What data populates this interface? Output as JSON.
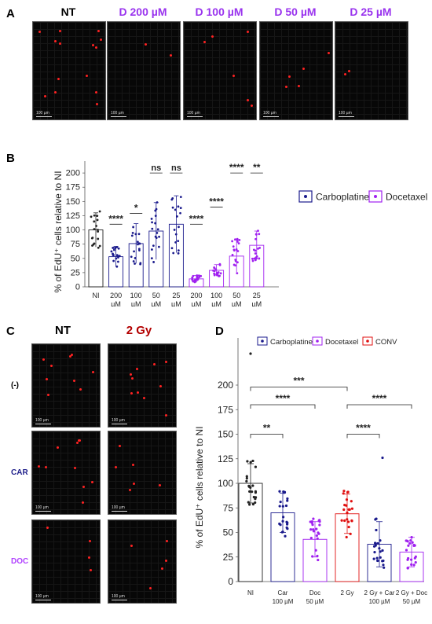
{
  "panels": {
    "a_letter": "A",
    "b_letter": "B",
    "c_letter": "C",
    "d_letter": "D"
  },
  "panel_a": {
    "headers": [
      {
        "label": "NT",
        "color": "#000000"
      },
      {
        "label": "D 200 µM",
        "color": "#9933ee"
      },
      {
        "label": "D 100 µM",
        "color": "#9933ee"
      },
      {
        "label": "D 50 µM",
        "color": "#9933ee"
      },
      {
        "label": "D 25 µM",
        "color": "#9933ee"
      }
    ],
    "scale_label": "100 µm"
  },
  "panel_c": {
    "col_headers": [
      {
        "label": "NT",
        "color": "#000000"
      },
      {
        "label": "2 Gy",
        "color": "#b30000"
      }
    ],
    "row_labels": [
      {
        "label": "(-)",
        "color": "#000000"
      },
      {
        "label": "CAR",
        "color": "#1f1f8a"
      },
      {
        "label": "DOC",
        "color": "#b040ff"
      }
    ],
    "scale_label": "100 µm"
  },
  "chart_data": [
    {
      "type": "bar",
      "panel": "B",
      "ylabel": "% of EdU⁺ cells relative to NI",
      "ylim": [
        0,
        225
      ],
      "yticks": [
        0,
        25,
        50,
        75,
        100,
        125,
        150,
        175,
        200
      ],
      "categories": [
        "NI",
        "200 µM",
        "100 µM",
        "50 µM",
        "25 µM",
        "200 µM",
        "100 µM",
        "50 µM",
        "25 µM"
      ],
      "bar_colors": [
        "#222222",
        "#1a1a8c",
        "#1a1a8c",
        "#1a1a8c",
        "#1a1a8c",
        "#a020f0",
        "#a020f0",
        "#a020f0",
        "#a020f0"
      ],
      "values": [
        100,
        53,
        76,
        98,
        110,
        14,
        29,
        54,
        73
      ],
      "error": [
        30,
        18,
        35,
        50,
        50,
        6,
        10,
        28,
        25
      ],
      "legend": [
        {
          "name": "Carboplatine",
          "color": "#1a1a8c"
        },
        {
          "name": "Docetaxel",
          "color": "#a020f0"
        }
      ],
      "legend_position": "top-right",
      "significance": [
        {
          "category_index": 1,
          "label": "****"
        },
        {
          "category_index": 2,
          "label": "*"
        },
        {
          "category_index": 3,
          "label": "ns"
        },
        {
          "category_index": 4,
          "label": "ns"
        },
        {
          "category_index": 5,
          "label": "****"
        },
        {
          "category_index": 6,
          "label": "****"
        },
        {
          "category_index": 7,
          "label": "****"
        },
        {
          "category_index": 8,
          "label": "**"
        }
      ]
    },
    {
      "type": "bar",
      "panel": "D",
      "ylabel": "% of EdU⁺ cells relative to NI",
      "ylim": [
        0,
        240
      ],
      "yticks": [
        0,
        25,
        50,
        75,
        100,
        125,
        150,
        175,
        200
      ],
      "categories": [
        "NI",
        "Car\n100 µM",
        "Doc\n50 µM",
        "2 Gy",
        "2 Gy + Car\n100 µM",
        "2 Gy + Doc\n50 µM"
      ],
      "bar_colors": [
        "#222222",
        "#1a1a8c",
        "#a020f0",
        "#e01010",
        "#1a1a8c",
        "#a020f0"
      ],
      "values": [
        100,
        70,
        43,
        69,
        38,
        30
      ],
      "error": [
        20,
        20,
        18,
        20,
        23,
        15
      ],
      "legend": [
        {
          "name": "Carboplatine",
          "color": "#1a1a8c"
        },
        {
          "name": "Docetaxel",
          "color": "#a020f0"
        },
        {
          "name": "CONV",
          "color": "#e01010"
        }
      ],
      "legend_position": "top",
      "significance": [
        {
          "from": 0,
          "to": 1,
          "level": 150,
          "label": "**"
        },
        {
          "from": 0,
          "to": 2,
          "level": 180,
          "label": "****"
        },
        {
          "from": 0,
          "to": 3,
          "level": 198,
          "label": "***"
        },
        {
          "from": 3,
          "to": 4,
          "level": 150,
          "label": "****"
        },
        {
          "from": 3,
          "to": 5,
          "level": 180,
          "label": "****"
        }
      ]
    }
  ]
}
